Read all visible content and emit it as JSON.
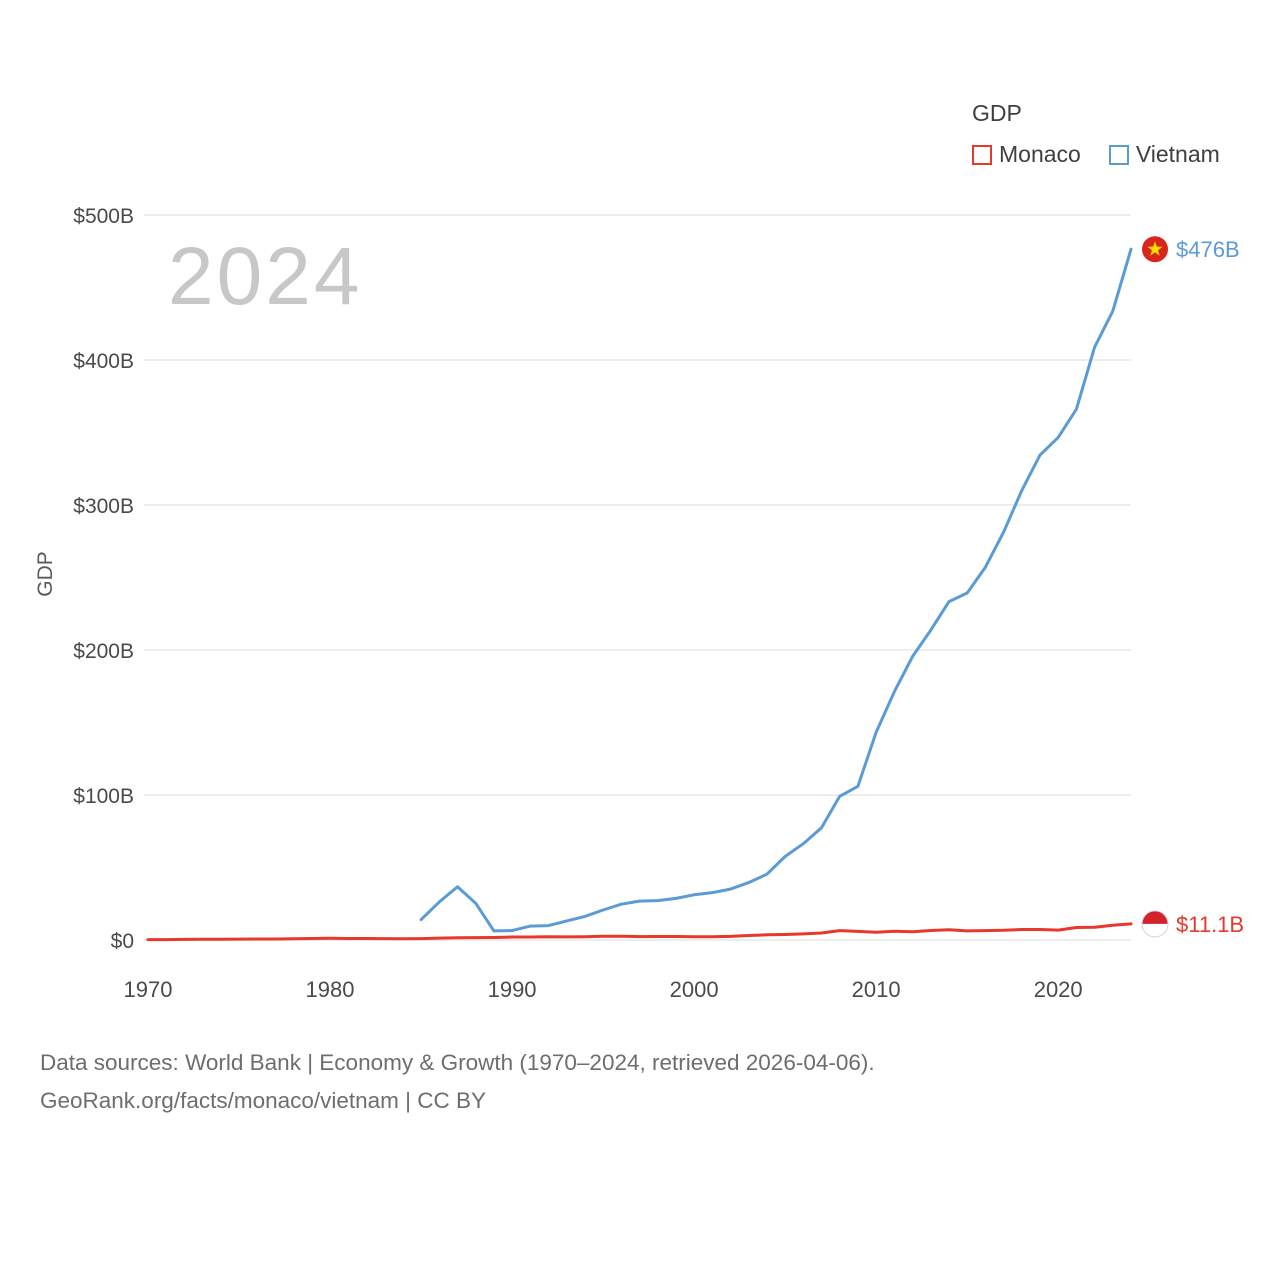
{
  "watermark": "2024",
  "y_axis_title": "GDP",
  "legend": {
    "title": "GDP",
    "items": [
      {
        "label": "Monaco",
        "color": "#e8372c"
      },
      {
        "label": "Vietnam",
        "color": "#5b9bd5"
      }
    ]
  },
  "footer": {
    "line1": "Data sources: World Bank | Economy & Growth (1970–2024, retrieved 2026-04-06).",
    "line2": "GeoRank.org/facts/monaco/vietnam | CC BY"
  },
  "chart_data": {
    "type": "line",
    "title": "GDP",
    "xlabel": "",
    "ylabel": "GDP",
    "x_range": [
      1970,
      2024
    ],
    "y_range_billions": [
      0,
      500
    ],
    "grid": true,
    "legend_position": "top-right",
    "x_ticks": [
      {
        "value": 1970,
        "label": "1970"
      },
      {
        "value": 1980,
        "label": "1980"
      },
      {
        "value": 1990,
        "label": "1990"
      },
      {
        "value": 2000,
        "label": "2000"
      },
      {
        "value": 2010,
        "label": "2010"
      },
      {
        "value": 2020,
        "label": "2020"
      }
    ],
    "y_ticks": [
      {
        "value": 0,
        "label": "$0"
      },
      {
        "value": 100,
        "label": "$100B"
      },
      {
        "value": 200,
        "label": "$200B"
      },
      {
        "value": 300,
        "label": "$300B"
      },
      {
        "value": 400,
        "label": "$400B"
      },
      {
        "value": 500,
        "label": "$500B"
      }
    ],
    "series": [
      {
        "name": "Vietnam",
        "color": "#5b9bd5",
        "flag": "vietnam",
        "end_label": "$476B",
        "start_year": 1985,
        "values_billions": [
          14.1,
          26.3,
          36.7,
          25.4,
          6.3,
          6.5,
          9.6,
          9.9,
          13.2,
          16.3,
          20.7,
          24.7,
          26.8,
          27.2,
          28.7,
          31.2,
          32.7,
          35.1,
          39.6,
          45.4,
          57.6,
          66.4,
          77.4,
          99.1,
          106.0,
          143.2,
          171.3,
          195.6,
          213.7,
          233.4,
          239.3,
          257.1,
          281.3,
          310.1,
          334.4,
          346.6,
          366.1,
          408.8,
          433.7,
          476.4
        ]
      },
      {
        "name": "Monaco",
        "color": "#e8372c",
        "flag": "monaco",
        "end_label": "$11.1B",
        "start_year": 1970,
        "values_billions": [
          0.28,
          0.31,
          0.38,
          0.49,
          0.52,
          0.64,
          0.66,
          0.71,
          0.86,
          1.04,
          1.19,
          1.05,
          1.0,
          0.95,
          0.9,
          0.94,
          1.29,
          1.55,
          1.68,
          1.71,
          2.09,
          2.09,
          2.26,
          2.14,
          2.26,
          2.61,
          2.59,
          2.34,
          2.41,
          2.42,
          2.26,
          2.31,
          2.5,
          3.11,
          3.58,
          3.76,
          4.21,
          4.81,
          6.48,
          5.93,
          5.36,
          6.08,
          5.7,
          6.55,
          7.06,
          6.26,
          6.47,
          6.68,
          7.21,
          7.22,
          6.82,
          8.6,
          8.77,
          10.2,
          11.1
        ]
      }
    ]
  }
}
